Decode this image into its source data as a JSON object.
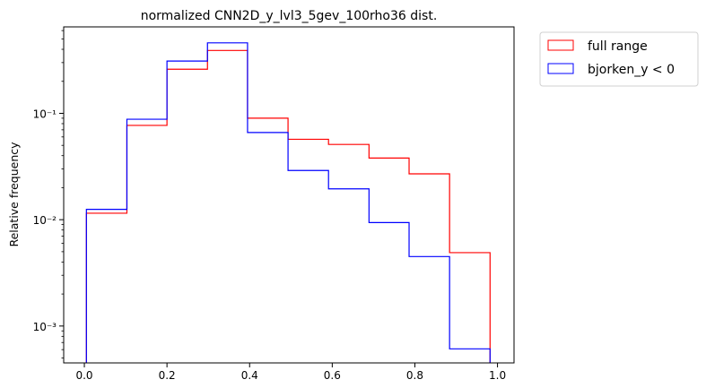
{
  "chart_data": {
    "type": "histogram-step",
    "title": "normalized CNN2D_y_lvl3_5gev_100rho36 dist.",
    "xlabel": "",
    "ylabel": "Relative frequency",
    "yscale": "log",
    "xlim": [
      -0.05,
      1.04
    ],
    "ylim": [
      0.00045,
      0.65
    ],
    "xticks": [
      0.0,
      0.2,
      0.4,
      0.6,
      0.8,
      1.0
    ],
    "xtick_labels": [
      "0.0",
      "0.2",
      "0.4",
      "0.6",
      "0.8",
      "1.0"
    ],
    "yticks": [
      0.001,
      0.01,
      0.1
    ],
    "ytick_labels": [
      "10⁻³",
      "10⁻²",
      "10⁻¹"
    ],
    "bin_edges": [
      0.005,
      0.103,
      0.2,
      0.298,
      0.395,
      0.493,
      0.591,
      0.689,
      0.786,
      0.884,
      0.982
    ],
    "grid": false,
    "legend_position": "outside-top-right",
    "series": [
      {
        "name": "full range",
        "color": "#ff0000",
        "values": [
          0.0115,
          0.077,
          0.26,
          0.39,
          0.09,
          0.057,
          0.051,
          0.038,
          0.027,
          0.0049
        ]
      },
      {
        "name": "bjorken_y < 0",
        "color": "#0000ff",
        "values": [
          0.0125,
          0.088,
          0.31,
          0.46,
          0.066,
          0.029,
          0.0195,
          0.0094,
          0.0045,
          0.00061
        ]
      }
    ]
  }
}
